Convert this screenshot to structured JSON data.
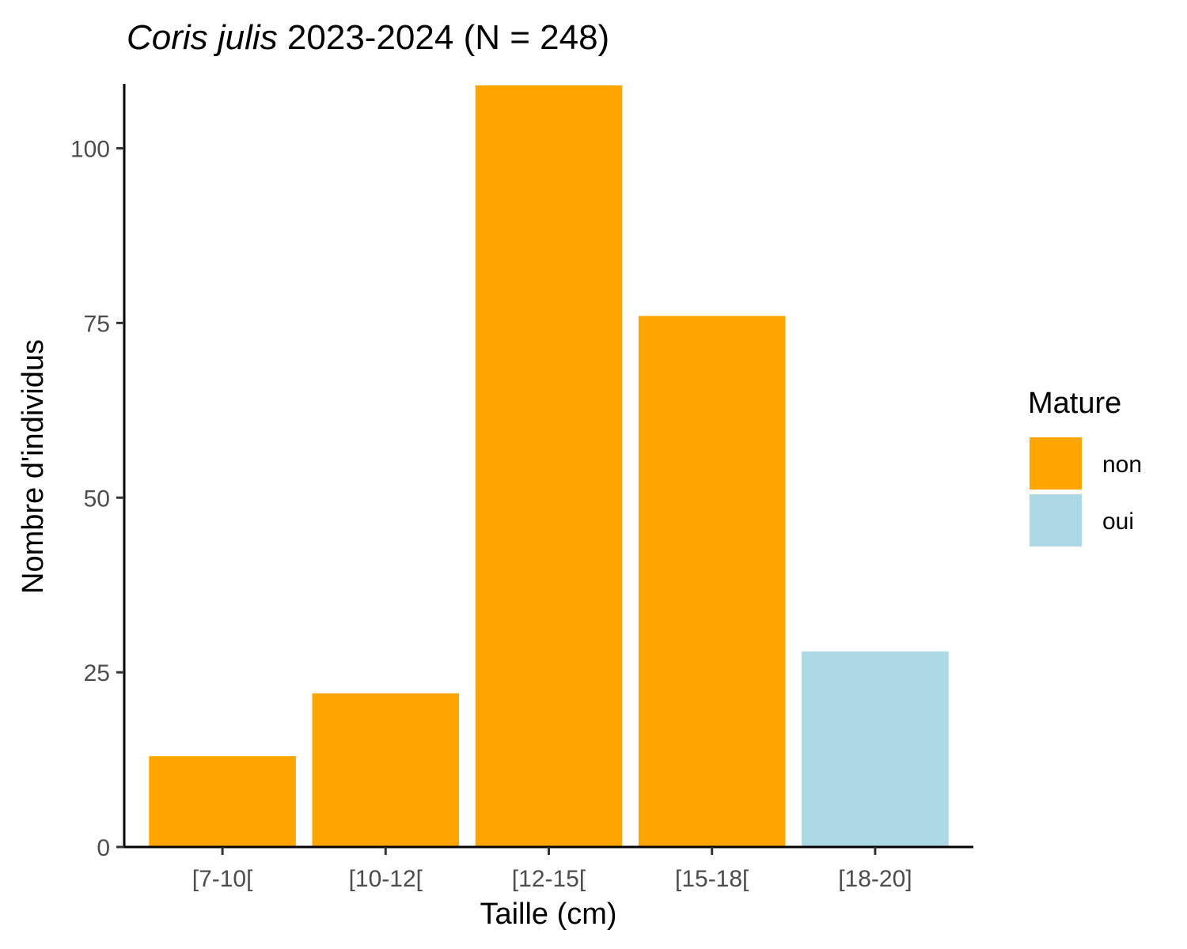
{
  "chart_data": {
    "type": "bar",
    "title_species": "Coris julis",
    "title_rest": " 2023-2024 (N = 248)",
    "xlabel": "Taille (cm)",
    "ylabel": "Nombre d'individus",
    "categories": [
      "[7-10[",
      "[10-12[",
      "[12-15[",
      "[15-18[",
      "[18-20]"
    ],
    "values": [
      13,
      22,
      109,
      76,
      28
    ],
    "mature": [
      "non",
      "non",
      "non",
      "non",
      "oui"
    ],
    "ylim": [
      0,
      109
    ],
    "yticks": [
      0,
      25,
      50,
      75,
      100
    ],
    "grid": false,
    "legend": {
      "title": "Mature",
      "placement": "right",
      "entries": [
        {
          "label": "non",
          "color": "#FFA500"
        },
        {
          "label": "oui",
          "color": "#ADD8E6"
        }
      ]
    }
  }
}
